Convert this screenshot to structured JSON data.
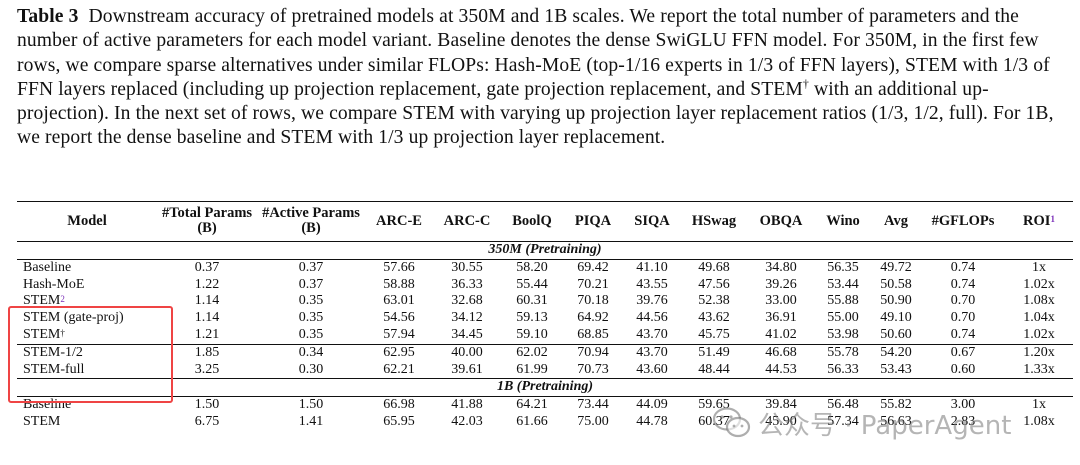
{
  "caption": {
    "label": "Table 3",
    "text_part1": "Downstream accuracy of pretrained models at 350M and 1B scales. We report the total number of parameters and the number of active parameters for each model variant. Baseline denotes the dense SwiGLU FFN model. For 350M, in the first few rows, we compare sparse alternatives under similar FLOPs: Hash-MoE (top-1/16 experts in 1/3 of FFN layers), STEM with 1/3 of FFN layers replaced (including up projection replacement, gate projection replacement, and STEM",
    "dagger": "†",
    "text_part2": "with an additional up-projection). In the next set of rows, we compare STEM with varying up projection layer replacement ratios (1/3, 1/2, full). For 1B, we report the dense baseline and STEM with 1/3 up projection layer replacement."
  },
  "table": {
    "headers": [
      "Model",
      "#Total Params (B)",
      "#Active Params (B)",
      "ARC-E",
      "ARC-C",
      "BoolQ",
      "PIQA",
      "SIQA",
      "HSwag",
      "OBQA",
      "Wino",
      "Avg",
      "#GFLOPs",
      "ROI"
    ],
    "roi_sup": "1",
    "section_350m": "350M (Pretraining)",
    "group1": [
      {
        "model": "Baseline",
        "sup": "",
        "cells": [
          "0.37",
          "0.37",
          "57.66",
          "30.55",
          "58.20",
          "69.42",
          "41.10",
          "49.68",
          "34.80",
          "56.35",
          "49.72",
          "0.74",
          "1x"
        ]
      },
      {
        "model": "Hash-MoE",
        "sup": "",
        "cells": [
          "1.22",
          "0.37",
          "58.88",
          "36.33",
          "55.44",
          "70.21",
          "43.55",
          "47.56",
          "39.26",
          "53.44",
          "50.58",
          "0.74",
          "1.02x"
        ]
      },
      {
        "model": "STEM",
        "sup": "2",
        "cells": [
          "1.14",
          "0.35",
          "63.01",
          "32.68",
          "60.31",
          "70.18",
          "39.76",
          "52.38",
          "33.00",
          "55.88",
          "50.90",
          "0.70",
          "1.08x"
        ]
      },
      {
        "model": "STEM (gate-proj)",
        "sup": "",
        "cells": [
          "1.14",
          "0.35",
          "54.56",
          "34.12",
          "59.13",
          "64.92",
          "44.56",
          "43.62",
          "36.91",
          "55.00",
          "49.10",
          "0.70",
          "1.04x"
        ]
      },
      {
        "model": "STEM",
        "sup": "†",
        "cells": [
          "1.21",
          "0.35",
          "57.94",
          "34.45",
          "59.10",
          "68.85",
          "43.70",
          "45.75",
          "41.02",
          "53.98",
          "50.60",
          "0.74",
          "1.02x"
        ]
      }
    ],
    "group2": [
      {
        "model": "STEM-1/2",
        "sup": "",
        "cells": [
          "1.85",
          "0.34",
          "62.95",
          "40.00",
          "62.02",
          "70.94",
          "43.70",
          "51.49",
          "46.68",
          "55.78",
          "54.20",
          "0.67",
          "1.20x"
        ]
      },
      {
        "model": "STEM-full",
        "sup": "",
        "cells": [
          "3.25",
          "0.30",
          "62.21",
          "39.61",
          "61.99",
          "70.73",
          "43.60",
          "48.44",
          "44.53",
          "56.33",
          "53.43",
          "0.60",
          "1.33x"
        ]
      }
    ],
    "section_1b": "1B (Pretraining)",
    "group3": [
      {
        "model": "Baseline",
        "sup": "",
        "cells": [
          "1.50",
          "1.50",
          "66.98",
          "41.88",
          "64.21",
          "73.44",
          "44.09",
          "59.65",
          "39.84",
          "56.48",
          "55.82",
          "3.00",
          "1x"
        ]
      },
      {
        "model": "STEM",
        "sup": "",
        "cells": [
          "6.75",
          "1.41",
          "65.95",
          "42.03",
          "61.66",
          "75.00",
          "44.78",
          "60.37",
          "45.90",
          "57.34",
          "56.63",
          "2.83",
          "1.08x"
        ]
      }
    ]
  },
  "watermark": {
    "text": "公众号 · PaperAgent"
  },
  "colors": {
    "highlight": "#ef4444",
    "footnote_link": "#7a2fb8"
  }
}
